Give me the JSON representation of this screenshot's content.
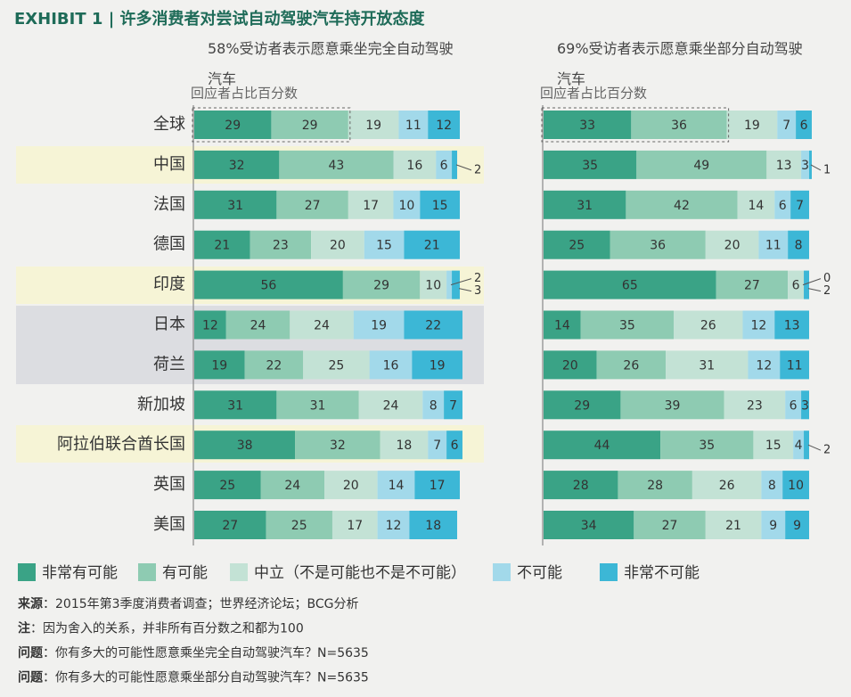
{
  "title": "EXHIBIT 1 | 许多消费者对尝试自动驾驶汽车持开放态度",
  "chart_data": [
    {
      "type": "bar",
      "stacked": true,
      "orientation": "horizontal",
      "subtitle": "58%受访者表示愿意乘坐完全自动驾驶汽车",
      "axis_label": "回应者占比百分数",
      "categories": [
        "全球",
        "中国",
        "法国",
        "德国",
        "印度",
        "日本",
        "荷兰",
        "新加坡",
        "阿拉伯联合酋长国",
        "英国",
        "美国"
      ],
      "xlim": [
        0,
        100
      ],
      "series": [
        {
          "name": "非常有可能",
          "color": "#3aa386",
          "values": [
            29,
            32,
            31,
            21,
            56,
            12,
            19,
            31,
            38,
            25,
            27
          ]
        },
        {
          "name": "有可能",
          "color": "#8ecbb2",
          "values": [
            29,
            43,
            27,
            23,
            29,
            24,
            22,
            31,
            32,
            24,
            25
          ]
        },
        {
          "name": "中立（不是可能也不是不可能）",
          "color": "#c3e2d5",
          "values": [
            19,
            16,
            17,
            20,
            10,
            24,
            25,
            24,
            18,
            20,
            17
          ]
        },
        {
          "name": "不可能",
          "color": "#a2d9ea",
          "values": [
            11,
            6,
            10,
            15,
            2,
            19,
            16,
            8,
            7,
            14,
            12
          ]
        },
        {
          "name": "非常不可能",
          "color": "#3cb7d6",
          "values": [
            12,
            2,
            15,
            21,
            3,
            22,
            19,
            7,
            6,
            17,
            18
          ]
        }
      ]
    },
    {
      "type": "bar",
      "stacked": true,
      "orientation": "horizontal",
      "subtitle": "69%受访者表示愿意乘坐部分自动驾驶汽车",
      "axis_label": "回应者占比百分数",
      "xlim": [
        0,
        100
      ],
      "series": [
        {
          "color": "#3aa386",
          "values": [
            33,
            35,
            31,
            25,
            65,
            14,
            20,
            29,
            44,
            28,
            34
          ]
        },
        {
          "color": "#8ecbb2",
          "values": [
            36,
            49,
            42,
            36,
            27,
            35,
            26,
            39,
            35,
            28,
            27
          ]
        },
        {
          "color": "#c3e2d5",
          "values": [
            19,
            13,
            14,
            20,
            6,
            26,
            31,
            23,
            15,
            26,
            21
          ]
        },
        {
          "color": "#a2d9ea",
          "values": [
            7,
            3,
            6,
            11,
            0,
            12,
            12,
            6,
            4,
            8,
            9
          ]
        },
        {
          "color": "#3cb7d6",
          "values": [
            6,
            1,
            7,
            8,
            2,
            13,
            11,
            3,
            2,
            10,
            9
          ]
        }
      ]
    }
  ],
  "notes": [
    {
      "label": "来源",
      "text": "：2015年第3季度消费者调查；世界经济论坛；BCG分析"
    },
    {
      "label": "注",
      "text": "：因为舍入的关系，并非所有百分数之和都为100"
    },
    {
      "label": "问题",
      "text": "：你有多大的可能性愿意乘坐完全自动驾驶汽车？N=5635"
    },
    {
      "label": "问题",
      "text": "：你有多大的可能性愿意乘坐部分自动驾驶汽车？N=5635"
    }
  ]
}
